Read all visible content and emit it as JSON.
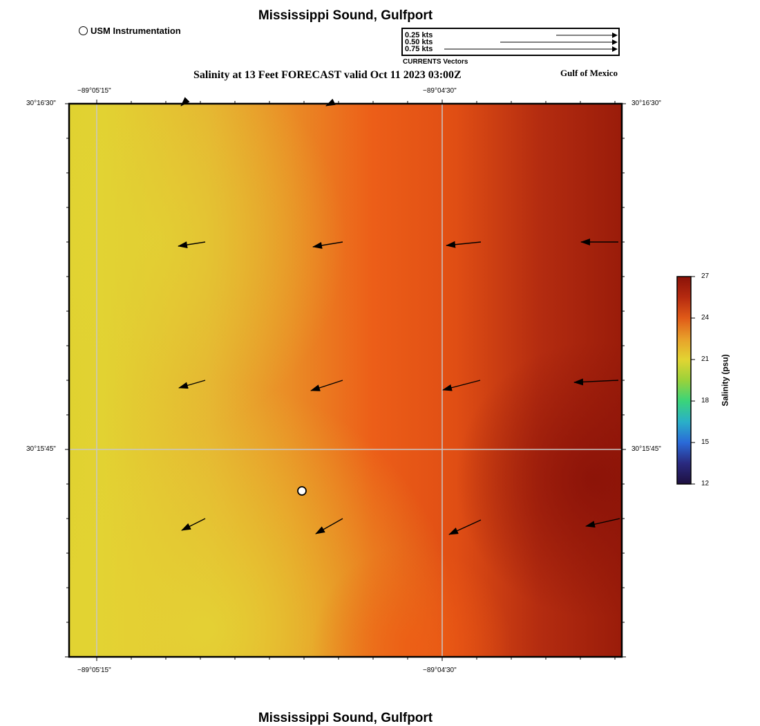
{
  "header": {
    "title": "Mississippi Sound, Gulfport",
    "subtitle": "Salinity at 13 Feet FORECAST valid Oct 11 2023 03:00Z",
    "region_label": "Gulf of Mexico",
    "footer_title": "Mississippi Sound, Gulfport"
  },
  "legend": {
    "usm_label": "USM Instrumentation"
  },
  "vector_key": {
    "labels": [
      "0.25 kts",
      "0.50 kts",
      "0.75 kts"
    ],
    "caption": "CURRENTS Vectors"
  },
  "axes": {
    "top_lon": [
      "−89°05'15\"",
      "−89°04'30\""
    ],
    "bottom_lon": [
      "−89°05'15\"",
      "−89°04'30\""
    ],
    "left_lat": [
      "30°16'30\"",
      "30°15'45\""
    ],
    "right_lat": [
      "30°16'30\"",
      "30°15'45\""
    ]
  },
  "colorbar": {
    "title": "Salinity (psu)",
    "ticks": [
      "27",
      "24",
      "21",
      "18",
      "15",
      "12"
    ],
    "colors": [
      "#8a1208",
      "#b52a10",
      "#e05a18",
      "#e8a02a",
      "#e2d432",
      "#9ad23a",
      "#3ad47a",
      "#2ab0c8",
      "#2a6ad8",
      "#2a2a80",
      "#1e1040"
    ]
  }
}
